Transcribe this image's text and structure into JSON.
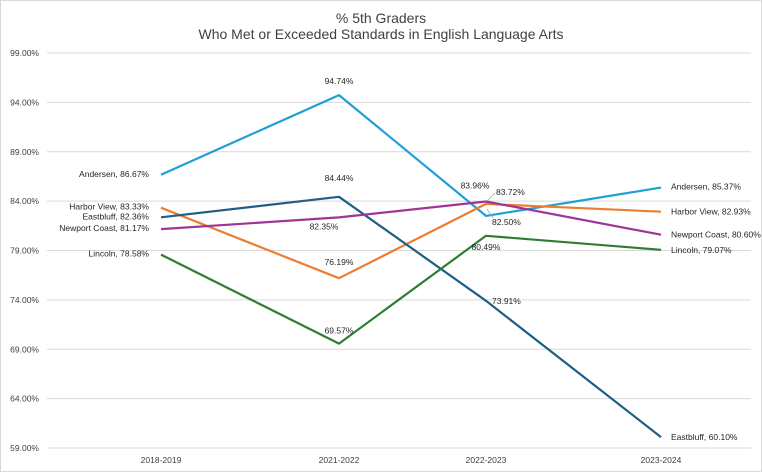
{
  "chart_data": {
    "type": "line",
    "title": [
      "% 5th Graders",
      "Who Met or Exceeded Standards in English Language Arts"
    ],
    "xlabel": "",
    "ylabel": "",
    "categories": [
      "2018-2019",
      "2021-2022",
      "2022-2023",
      "2023-2024"
    ],
    "ylim": [
      59,
      99
    ],
    "yticks": [
      "59.00%",
      "64.00%",
      "69.00%",
      "74.00%",
      "79.00%",
      "84.00%",
      "89.00%",
      "94.00%",
      "99.00%"
    ],
    "grid": true,
    "legend": "none",
    "series": [
      {
        "name": "Andersen",
        "color": "#1f9fd6",
        "values": [
          86.67,
          94.74,
          82.5,
          85.37
        ],
        "labels": [
          "Andersen, 86.67%",
          "94.74%",
          "82.50%",
          "Andersen, 85.37%"
        ]
      },
      {
        "name": "Harbor View",
        "color": "#ed7d31",
        "values": [
          83.33,
          76.19,
          83.72,
          82.93
        ],
        "labels": [
          "Harbor View, 83.33%",
          "76.19%",
          "83.72%",
          "Harbor View, 82.93%"
        ]
      },
      {
        "name": "Eastbluff",
        "color": "#1f5f86",
        "values": [
          82.36,
          84.44,
          73.91,
          60.1
        ],
        "labels": [
          "Eastbluff, 82.36%",
          "84.44%",
          "73.91%",
          "Eastbluff, 60.10%"
        ]
      },
      {
        "name": "Newport Coast",
        "color": "#a03596",
        "values": [
          81.17,
          82.35,
          83.96,
          80.6
        ],
        "labels": [
          "Newport Coast, 81.17%",
          "82.35%",
          "83.96%",
          "Newport Coast, 80.60%"
        ]
      },
      {
        "name": "Lincoln",
        "color": "#2e7d32",
        "values": [
          78.58,
          69.57,
          80.49,
          79.07
        ],
        "labels": [
          "Lincoln, 78.58%",
          "69.57%",
          "80.49%",
          "Lincoln, 79.07%"
        ]
      }
    ]
  }
}
